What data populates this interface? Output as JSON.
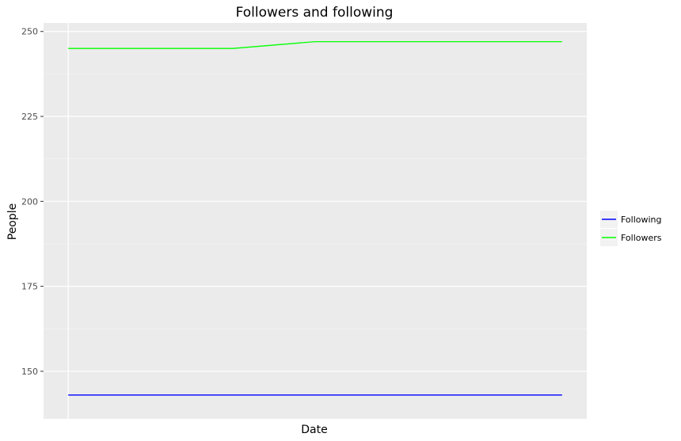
{
  "chart_data": {
    "type": "line",
    "title": "Followers and following",
    "xlabel": "Date",
    "ylabel": "People",
    "x": [
      0,
      1,
      2,
      3,
      4,
      5,
      6
    ],
    "xlim": [
      -0.3,
      6.3
    ],
    "ylim": [
      136,
      252.5
    ],
    "yticks": [
      150,
      175,
      200,
      225,
      250
    ],
    "grid": true,
    "legend_position": "right",
    "series": [
      {
        "name": "Following",
        "color": "#0000ff",
        "values": [
          143,
          143,
          143,
          143,
          143,
          143,
          143
        ]
      },
      {
        "name": "Followers",
        "color": "#00ff00",
        "values": [
          245,
          245,
          245,
          247,
          247,
          247,
          247
        ]
      }
    ]
  }
}
